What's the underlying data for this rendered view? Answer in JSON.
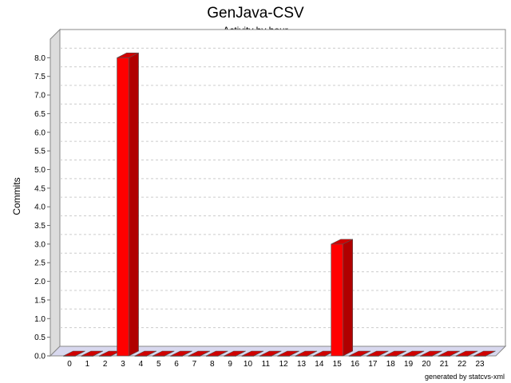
{
  "chart_data": {
    "type": "bar",
    "title": "GenJava-CSV",
    "subtitle": "Activity by hour",
    "xlabel": "",
    "ylabel": "Commits",
    "categories": [
      "0",
      "1",
      "2",
      "3",
      "4",
      "5",
      "6",
      "7",
      "8",
      "9",
      "10",
      "11",
      "12",
      "13",
      "14",
      "15",
      "16",
      "17",
      "18",
      "19",
      "20",
      "21",
      "22",
      "23"
    ],
    "values": [
      0,
      0,
      0,
      8,
      0,
      0,
      0,
      0,
      0,
      0,
      0,
      0,
      0,
      0,
      0,
      3,
      0,
      0,
      0,
      0,
      0,
      0,
      0,
      0
    ],
    "ylim": [
      0,
      8.5
    ],
    "yticks": [
      "0.0",
      "0.5",
      "1.0",
      "1.5",
      "2.0",
      "2.5",
      "3.0",
      "3.5",
      "4.0",
      "4.5",
      "5.0",
      "5.5",
      "6.0",
      "6.5",
      "7.0",
      "7.5",
      "8.0"
    ],
    "grid": true,
    "legend": "none",
    "bar_color": "#ff0000",
    "bar_dark_color": "#b00000",
    "bar_top_color": "#d00000",
    "floor_color": "#d8d8ee",
    "wall_color": "#dcdcdc"
  },
  "footer": "generated by statcvs-xml"
}
